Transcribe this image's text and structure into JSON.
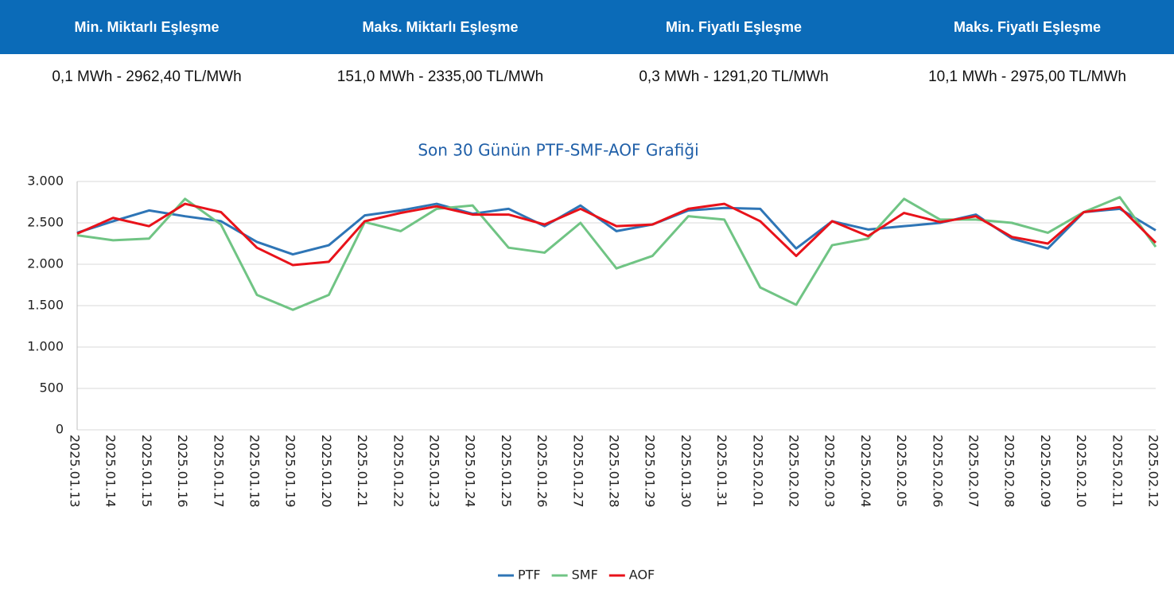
{
  "table": {
    "header": [
      "Min. Miktarlı Eşleşme",
      "Maks. Miktarlı Eşleşme",
      "Min. Fiyatlı Eşleşme",
      "Maks. Fiyatlı Eşleşme"
    ],
    "rows": [
      [
        "0,1 MWh - 2962,40 TL/MWh",
        "151,0 MWh - 2335,00 TL/MWh",
        "0,3 MWh - 1291,20 TL/MWh",
        "10,1 MWh - 2975,00 TL/MWh"
      ]
    ]
  },
  "chart_data": {
    "type": "line",
    "title": "Son 30 Günün PTF-SMF-AOF Grafiği",
    "categories": [
      "2025.01.13",
      "2025.01.14",
      "2025.01.15",
      "2025.01.16",
      "2025.01.17",
      "2025.01.18",
      "2025.01.19",
      "2025.01.20",
      "2025.01.21",
      "2025.01.22",
      "2025.01.23",
      "2025.01.24",
      "2025.01.25",
      "2025.01.26",
      "2025.01.27",
      "2025.01.28",
      "2025.01.29",
      "2025.01.30",
      "2025.01.31",
      "2025.02.01",
      "2025.02.02",
      "2025.02.03",
      "2025.02.04",
      "2025.02.05",
      "2025.02.06",
      "2025.02.07",
      "2025.02.08",
      "2025.02.09",
      "2025.02.10",
      "2025.02.11",
      "2025.02.12"
    ],
    "series": [
      {
        "name": "PTF",
        "color": "#2e75b6",
        "values": [
          2380,
          2520,
          2650,
          2580,
          2520,
          2270,
          2120,
          2230,
          2590,
          2650,
          2730,
          2610,
          2670,
          2460,
          2710,
          2400,
          2480,
          2650,
          2680,
          2670,
          2190,
          2520,
          2420,
          2460,
          2500,
          2600,
          2310,
          2190,
          2630,
          2670,
          2410
        ]
      },
      {
        "name": "SMF",
        "color": "#70c484",
        "values": [
          2350,
          2290,
          2310,
          2790,
          2480,
          1630,
          1450,
          1630,
          2510,
          2400,
          2670,
          2710,
          2200,
          2140,
          2500,
          1950,
          2100,
          2580,
          2540,
          1720,
          1510,
          2230,
          2310,
          2790,
          2540,
          2540,
          2500,
          2380,
          2630,
          2810,
          2210
        ]
      },
      {
        "name": "AOF",
        "color": "#e8121a",
        "values": [
          2370,
          2560,
          2460,
          2730,
          2630,
          2200,
          1990,
          2030,
          2520,
          2620,
          2700,
          2600,
          2600,
          2480,
          2670,
          2460,
          2480,
          2670,
          2730,
          2520,
          2100,
          2520,
          2340,
          2620,
          2510,
          2580,
          2330,
          2250,
          2630,
          2690,
          2260
        ]
      }
    ],
    "ylim": [
      0,
      3000
    ],
    "yticks": [
      0,
      500,
      {
        "value": 1000,
        "label": "1.000"
      },
      {
        "value": 1500,
        "label": "1.500"
      },
      {
        "value": 2000,
        "label": "2.000"
      },
      {
        "value": 2500,
        "label": "2.500"
      },
      {
        "value": 3000,
        "label": "3.000"
      }
    ],
    "grid": true,
    "legend": "bottom"
  }
}
